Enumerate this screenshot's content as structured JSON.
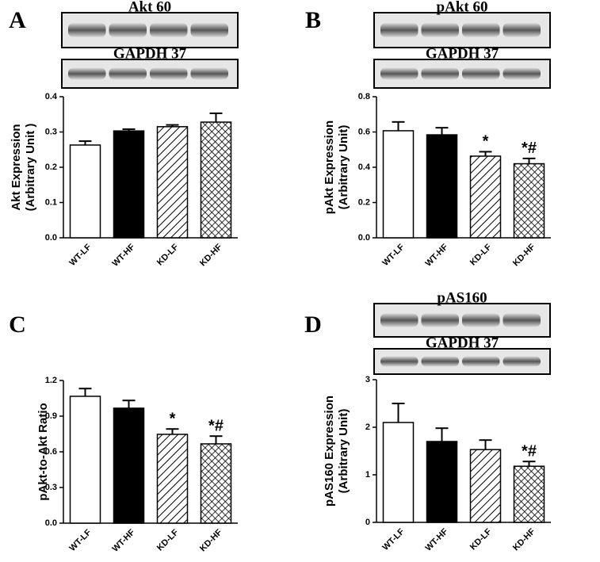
{
  "chart_data": [
    {
      "type": "bar",
      "panel_label": "A",
      "blots": [
        {
          "label": "Akt 60"
        },
        {
          "label": "GAPDH 37"
        }
      ],
      "ylabel": [
        "Akt Expression",
        "(Arbitrary Unit )"
      ],
      "categories": [
        "WT-LF",
        "WT-HF",
        "KD-LF",
        "KD-HF"
      ],
      "values": [
        0.263,
        0.303,
        0.315,
        0.328
      ],
      "errors": [
        0.011,
        0.005,
        0.005,
        0.025
      ],
      "annotations": [
        null,
        null,
        null,
        null
      ],
      "fills": [
        "white",
        "black",
        "hatch",
        "crosshatch"
      ],
      "ylim": [
        0,
        0.4
      ],
      "yticks": [
        {
          "value": 0,
          "label": "0.0"
        },
        0.1,
        0.2,
        0.3,
        0.4
      ]
    },
    {
      "type": "bar",
      "panel_label": "B",
      "blots": [
        {
          "label": "pAkt 60"
        },
        {
          "label": "GAPDH 37"
        }
      ],
      "ylabel": [
        "pAkt Expression",
        "(Arbitrary Unit)"
      ],
      "categories": [
        "WT-LF",
        "WT-HF",
        "KD-LF",
        "KD-HF"
      ],
      "values": [
        0.607,
        0.584,
        0.463,
        0.42
      ],
      "errors": [
        0.05,
        0.04,
        0.025,
        0.03
      ],
      "annotations": [
        null,
        null,
        "*",
        "*#"
      ],
      "fills": [
        "white",
        "black",
        "hatch",
        "crosshatch"
      ],
      "ylim": [
        0,
        0.8
      ],
      "yticks": [
        {
          "value": 0,
          "label": "0.0"
        },
        0.2,
        0.4,
        0.6,
        0.8
      ]
    },
    {
      "type": "bar",
      "panel_label": "C",
      "blots": [],
      "ylabel": [
        "pAkt-to-Akt Ratio"
      ],
      "categories": [
        "WT-LF",
        "WT-HF",
        "KD-LF",
        "KD-HF"
      ],
      "values": [
        1.067,
        0.967,
        0.747,
        0.667
      ],
      "errors": [
        0.065,
        0.065,
        0.045,
        0.065
      ],
      "annotations": [
        null,
        null,
        "*",
        "*#"
      ],
      "fills": [
        "white",
        "black",
        "hatch",
        "crosshatch"
      ],
      "ylim": [
        0,
        1.2
      ],
      "yticks": [
        {
          "value": 0,
          "label": "0.0"
        },
        0.3,
        0.6,
        0.9,
        1.2
      ]
    },
    {
      "type": "bar",
      "panel_label": "D",
      "blots": [
        {
          "label": "pAS160"
        },
        {
          "label": "GAPDH 37"
        }
      ],
      "ylabel": [
        "pAS160 Expression",
        "(Arbitrary Unit)"
      ],
      "categories": [
        "WT-LF",
        "WT-HF",
        "KD-LF",
        "KD-HF"
      ],
      "values": [
        2.1,
        1.7,
        1.53,
        1.18
      ],
      "errors": [
        0.4,
        0.28,
        0.2,
        0.1
      ],
      "annotations": [
        null,
        null,
        null,
        "*#"
      ],
      "fills": [
        "white",
        "black",
        "hatch",
        "crosshatch"
      ],
      "ylim": [
        0,
        3
      ],
      "yticks": [
        0,
        1,
        2,
        3
      ]
    }
  ]
}
